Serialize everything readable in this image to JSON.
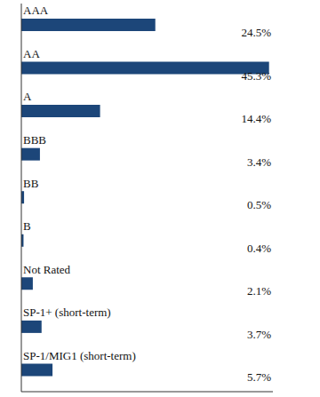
{
  "chart_data": {
    "type": "bar",
    "orientation": "horizontal",
    "categories": [
      "AAA",
      "AA",
      "A",
      "BBB",
      "BB",
      "B",
      "Not Rated",
      "SP-1+ (short-term)",
      "SP-1/MIG1 (short-term)"
    ],
    "values": [
      24.5,
      45.3,
      14.4,
      3.4,
      0.5,
      0.4,
      2.1,
      3.7,
      5.7
    ],
    "value_labels": [
      "24.5%",
      "45.3%",
      "14.4%",
      "3.4%",
      "0.5%",
      "0.4%",
      "2.1%",
      "3.7%",
      "5.7%"
    ],
    "data_labels": true,
    "color": "#1c4679",
    "xlim": [
      0,
      46
    ],
    "tick_labels": "y",
    "grid": false
  }
}
